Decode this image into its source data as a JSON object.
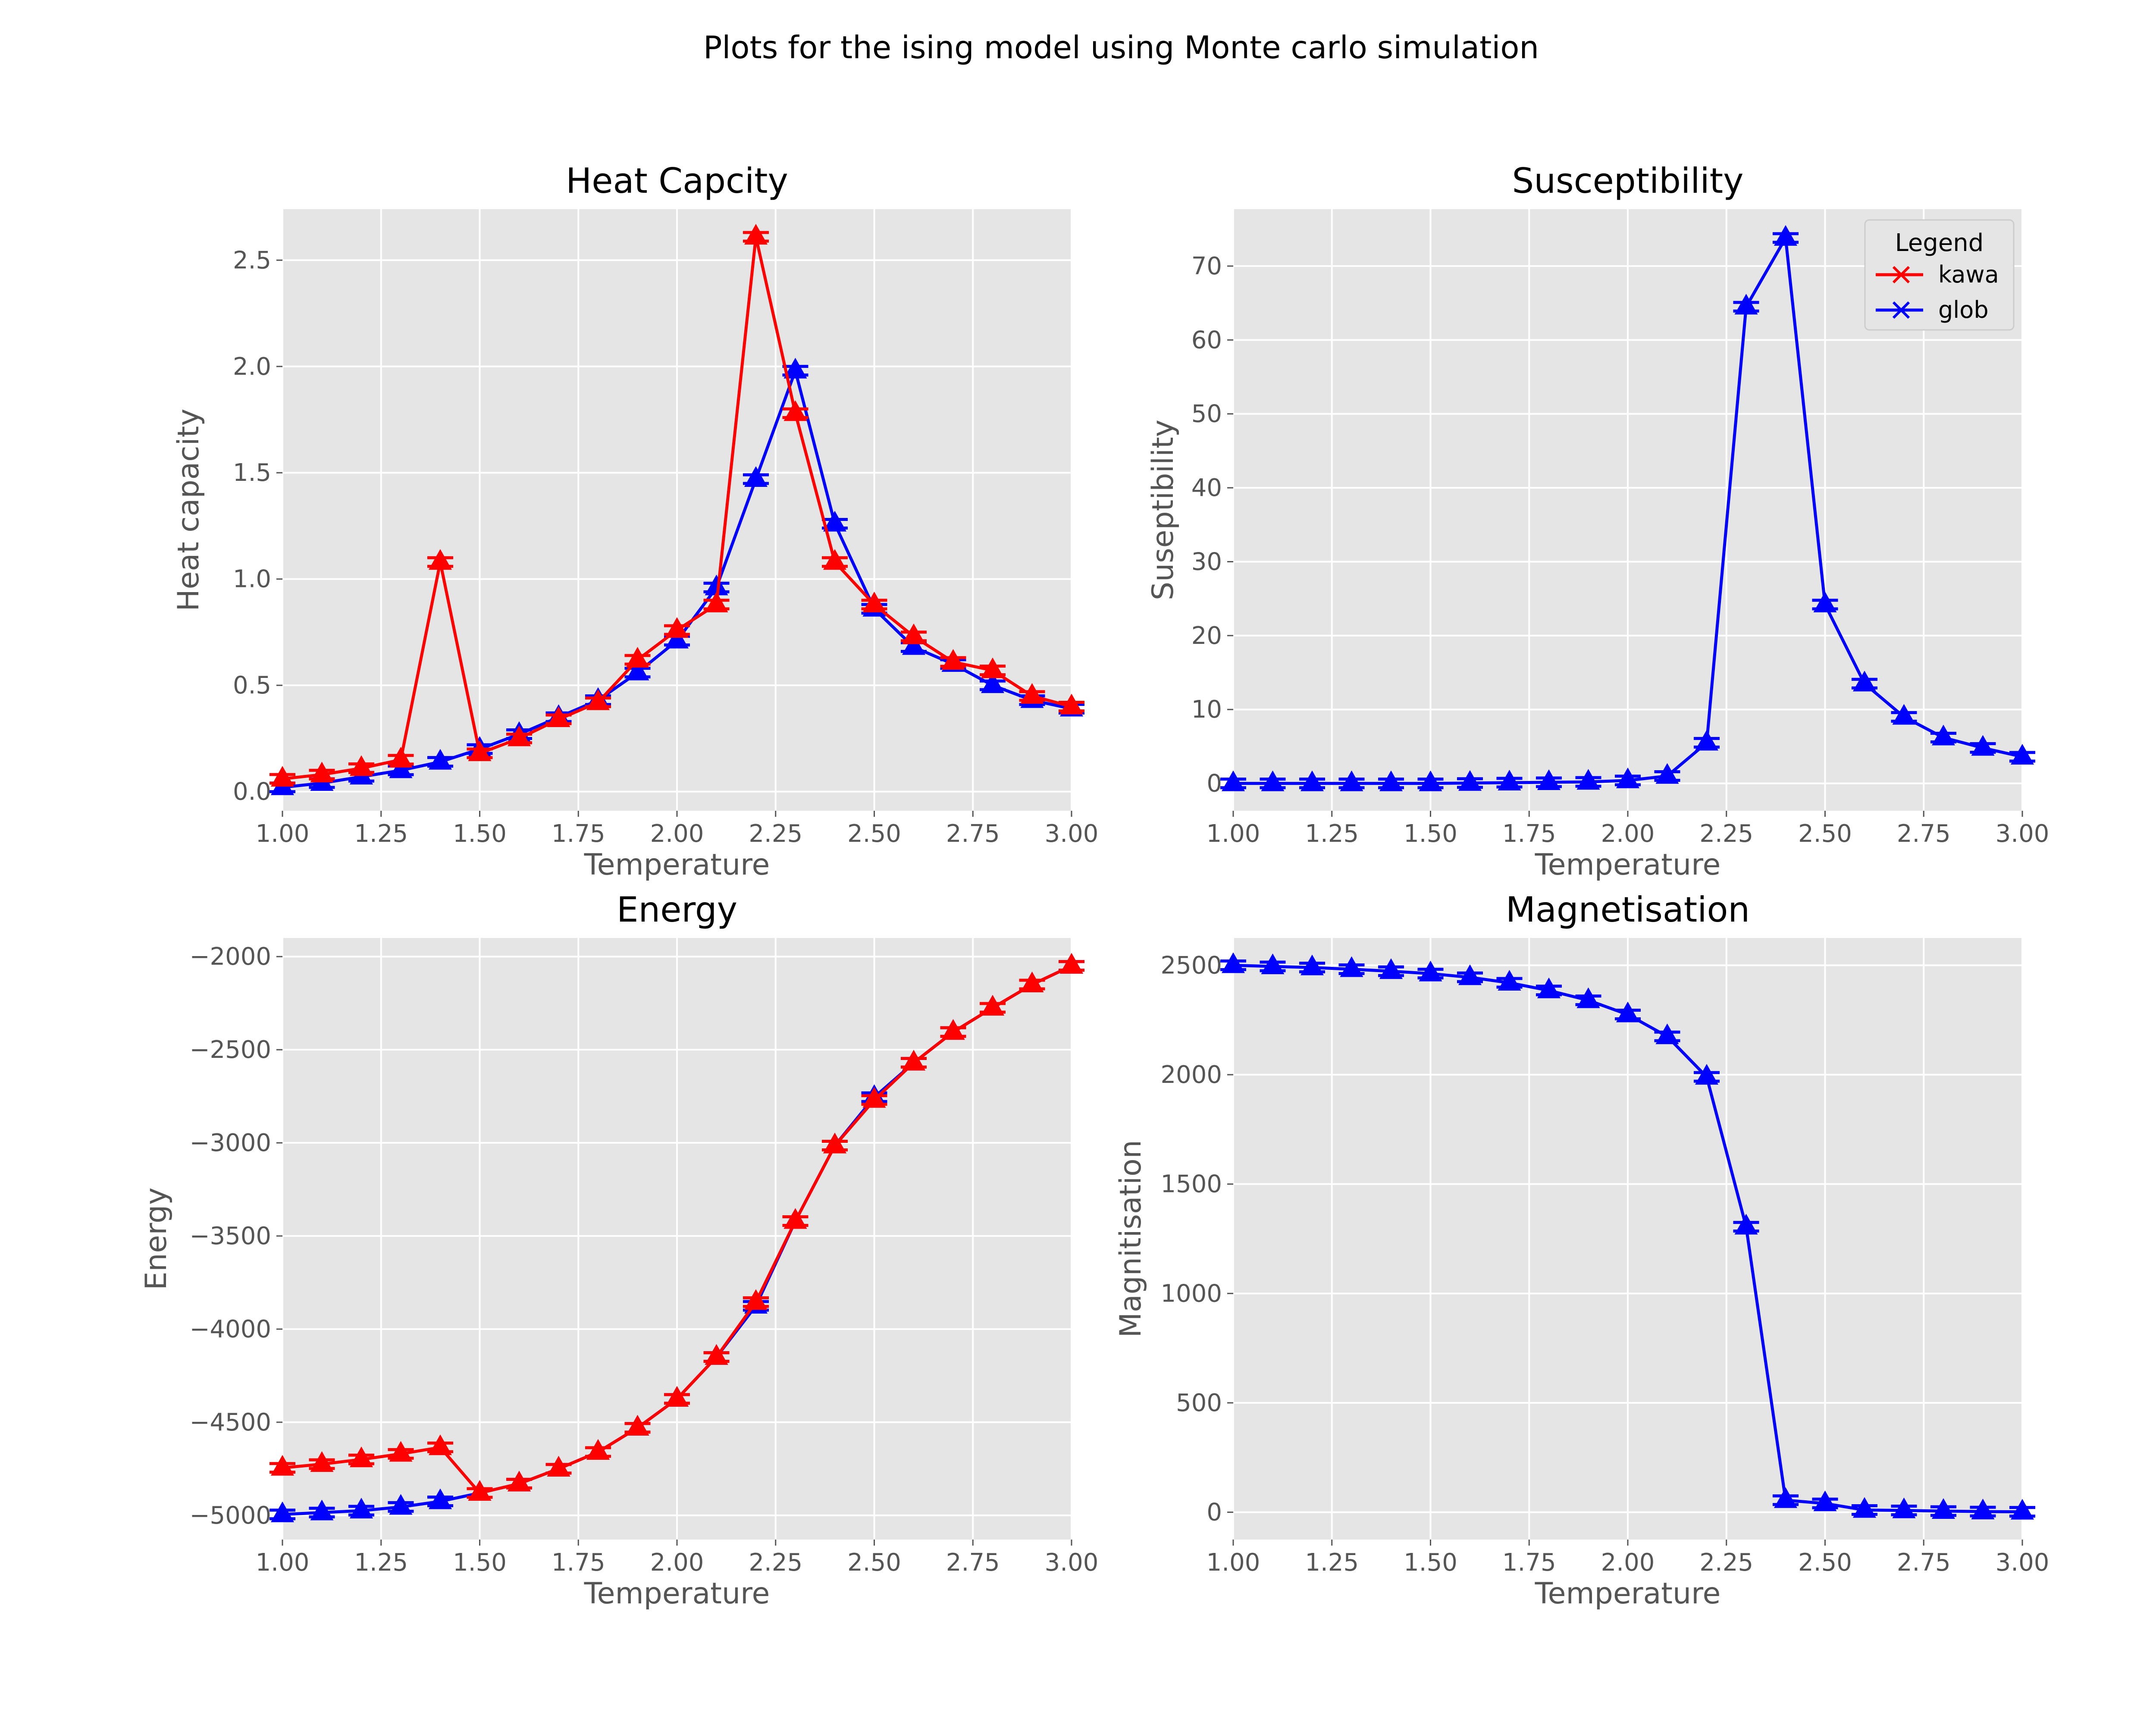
{
  "figure": {
    "suptitle": "Plots for the ising model using Monte carlo simulation"
  },
  "legend": {
    "title": "Legend",
    "entries": [
      {
        "label": "kawa",
        "color": "#ff0000"
      },
      {
        "label": "glob",
        "color": "#0000ff"
      }
    ]
  },
  "chart_data": [
    {
      "type": "line",
      "title": "Heat Capcity",
      "xlabel": "Temperature",
      "ylabel": "Heat capacity",
      "xlim": [
        1.0,
        3.0
      ],
      "ylim": [
        -0.09,
        2.74
      ],
      "xticks": [
        "1.00",
        "1.25",
        "1.50",
        "1.75",
        "2.00",
        "2.25",
        "2.50",
        "2.75",
        "3.00"
      ],
      "yticks": [
        "0.0",
        "0.5",
        "1.0",
        "1.5",
        "2.0",
        "2.5"
      ],
      "ytick_values": [
        0.0,
        0.5,
        1.0,
        1.5,
        2.0,
        2.5
      ],
      "grid": true,
      "x": [
        1.0,
        1.1,
        1.2,
        1.3,
        1.4,
        1.5,
        1.6,
        1.7,
        1.8,
        1.9,
        2.0,
        2.1,
        2.2,
        2.3,
        2.4,
        2.5,
        2.6,
        2.7,
        2.8,
        2.9,
        3.0
      ],
      "series": [
        {
          "name": "kawa",
          "color": "#ff0000",
          "values": [
            0.06,
            0.08,
            0.11,
            0.15,
            1.08,
            0.18,
            0.25,
            0.34,
            0.42,
            0.62,
            0.76,
            0.88,
            2.61,
            1.78,
            1.08,
            0.88,
            0.73,
            0.61,
            0.57,
            0.45,
            0.4
          ]
        },
        {
          "name": "glob",
          "color": "#0000ff",
          "values": [
            0.02,
            0.04,
            0.07,
            0.1,
            0.14,
            0.2,
            0.27,
            0.35,
            0.43,
            0.56,
            0.71,
            0.96,
            1.47,
            1.98,
            1.26,
            0.86,
            0.68,
            0.6,
            0.5,
            0.43,
            0.39
          ]
        }
      ]
    },
    {
      "type": "line",
      "title": "Susceptibility",
      "xlabel": "Temperature",
      "ylabel": "Suseptibility",
      "xlim": [
        1.0,
        3.0
      ],
      "ylim": [
        -3.7,
        77.7
      ],
      "xticks": [
        "1.00",
        "1.25",
        "1.50",
        "1.75",
        "2.00",
        "2.25",
        "2.50",
        "2.75",
        "3.00"
      ],
      "yticks": [
        "0",
        "10",
        "20",
        "30",
        "40",
        "50",
        "60",
        "70"
      ],
      "ytick_values": [
        0,
        10,
        20,
        30,
        40,
        50,
        60,
        70
      ],
      "grid": true,
      "legend_position": "top-right",
      "x": [
        1.0,
        1.1,
        1.2,
        1.3,
        1.4,
        1.5,
        1.6,
        1.7,
        1.8,
        1.9,
        2.0,
        2.1,
        2.2,
        2.3,
        2.4,
        2.5,
        2.6,
        2.7,
        2.8,
        2.9,
        3.0
      ],
      "series": [
        {
          "name": "glob",
          "color": "#0000ff",
          "values": [
            0.0,
            0.0,
            0.0,
            0.0,
            0.0,
            0.0,
            0.05,
            0.1,
            0.15,
            0.2,
            0.4,
            1.0,
            5.5,
            64.5,
            73.8,
            24.2,
            13.5,
            9.0,
            6.2,
            4.8,
            3.6
          ]
        }
      ]
    },
    {
      "type": "line",
      "title": "Energy",
      "xlabel": "Temperature",
      "ylabel": "Energy",
      "xlim": [
        1.0,
        3.0
      ],
      "ylim": [
        -5130,
        -1900
      ],
      "xticks": [
        "1.00",
        "1.25",
        "1.50",
        "1.75",
        "2.00",
        "2.25",
        "2.50",
        "2.75",
        "3.00"
      ],
      "yticks": [
        "−2000",
        "−2500",
        "−3000",
        "−3500",
        "−4000",
        "−4500",
        "−5000"
      ],
      "ytick_values": [
        -2000,
        -2500,
        -3000,
        -3500,
        -4000,
        -4500,
        -5000
      ],
      "grid": true,
      "x": [
        1.0,
        1.1,
        1.2,
        1.3,
        1.4,
        1.5,
        1.6,
        1.7,
        1.8,
        1.9,
        2.0,
        2.1,
        2.2,
        2.3,
        2.4,
        2.5,
        2.6,
        2.7,
        2.8,
        2.9,
        3.0
      ],
      "series": [
        {
          "name": "kawa",
          "color": "#ff0000",
          "values": [
            -4745,
            -4725,
            -4700,
            -4670,
            -4635,
            -4880,
            -4830,
            -4750,
            -4660,
            -4530,
            -4375,
            -4150,
            -3855,
            -3420,
            -3015,
            -2770,
            -2570,
            -2405,
            -2275,
            -2150,
            -2050
          ]
        },
        {
          "name": "glob",
          "color": "#0000ff",
          "values": [
            -4995,
            -4985,
            -4975,
            -4955,
            -4925,
            -4880,
            -4830,
            -4750,
            -4660,
            -4530,
            -4375,
            -4150,
            -3875,
            -3420,
            -3015,
            -2755,
            -2570,
            -2405,
            -2275,
            -2150,
            -2050
          ]
        }
      ]
    },
    {
      "type": "line",
      "title": "Magnetisation",
      "xlabel": "Temperature",
      "ylabel": "Magnitisation",
      "xlim": [
        1.0,
        3.0
      ],
      "ylim": [
        -125,
        2625
      ],
      "xticks": [
        "1.00",
        "1.25",
        "1.50",
        "1.75",
        "2.00",
        "2.25",
        "2.50",
        "2.75",
        "3.00"
      ],
      "yticks": [
        "0",
        "500",
        "1000",
        "1500",
        "2000",
        "2500"
      ],
      "ytick_values": [
        0,
        500,
        1000,
        1500,
        2000,
        2500
      ],
      "grid": true,
      "x": [
        1.0,
        1.1,
        1.2,
        1.3,
        1.4,
        1.5,
        1.6,
        1.7,
        1.8,
        1.9,
        2.0,
        2.1,
        2.2,
        2.3,
        2.4,
        2.5,
        2.6,
        2.7,
        2.8,
        2.9,
        3.0
      ],
      "series": [
        {
          "name": "glob",
          "color": "#0000ff",
          "values": [
            2500,
            2495,
            2490,
            2482,
            2473,
            2462,
            2445,
            2420,
            2385,
            2340,
            2275,
            2175,
            1990,
            1305,
            55,
            40,
            10,
            8,
            5,
            3,
            2
          ]
        }
      ]
    }
  ]
}
